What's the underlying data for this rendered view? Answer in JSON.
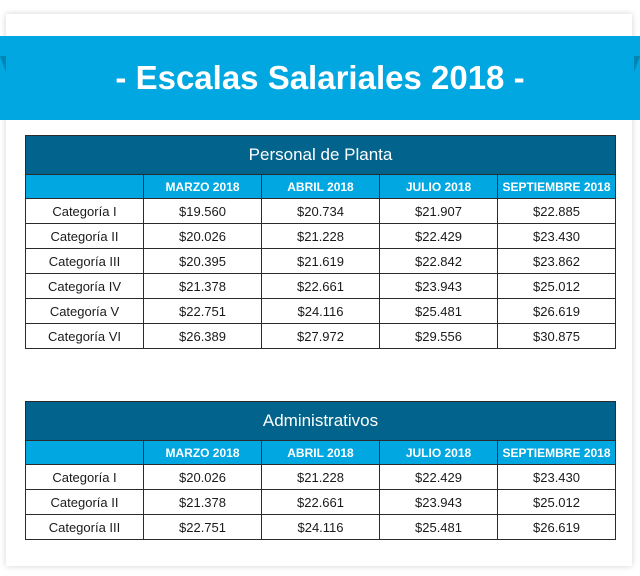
{
  "banner": {
    "title": "- Escalas Salariales 2018 -"
  },
  "colors": {
    "accent": "#00a7e1",
    "dark": "#02648c"
  },
  "columns": [
    "MARZO 2018",
    "ABRIL 2018",
    "JULIO 2018",
    "SEPTIEMBRE 2018"
  ],
  "tables": [
    {
      "title": "Personal de Planta",
      "rows": [
        {
          "label": "Categoría I",
          "values": [
            "$19.560",
            "$20.734",
            "$21.907",
            "$22.885"
          ]
        },
        {
          "label": "Categoría II",
          "values": [
            "$20.026",
            "$21.228",
            "$22.429",
            "$23.430"
          ]
        },
        {
          "label": "Categoría III",
          "values": [
            "$20.395",
            "$21.619",
            "$22.842",
            "$23.862"
          ]
        },
        {
          "label": "Categoría IV",
          "values": [
            "$21.378",
            "$22.661",
            "$23.943",
            "$25.012"
          ]
        },
        {
          "label": "Categoría V",
          "values": [
            "$22.751",
            "$24.116",
            "$25.481",
            "$26.619"
          ]
        },
        {
          "label": "Categoría VI",
          "values": [
            "$26.389",
            "$27.972",
            "$29.556",
            "$30.875"
          ]
        }
      ]
    },
    {
      "title": "Administrativos",
      "rows": [
        {
          "label": "Categoría I",
          "values": [
            "$20.026",
            "$21.228",
            "$22.429",
            "$23.430"
          ]
        },
        {
          "label": "Categoría II",
          "values": [
            "$21.378",
            "$22.661",
            "$23.943",
            "$25.012"
          ]
        },
        {
          "label": "Categoría III",
          "values": [
            "$22.751",
            "$24.116",
            "$25.481",
            "$26.619"
          ]
        }
      ]
    }
  ]
}
